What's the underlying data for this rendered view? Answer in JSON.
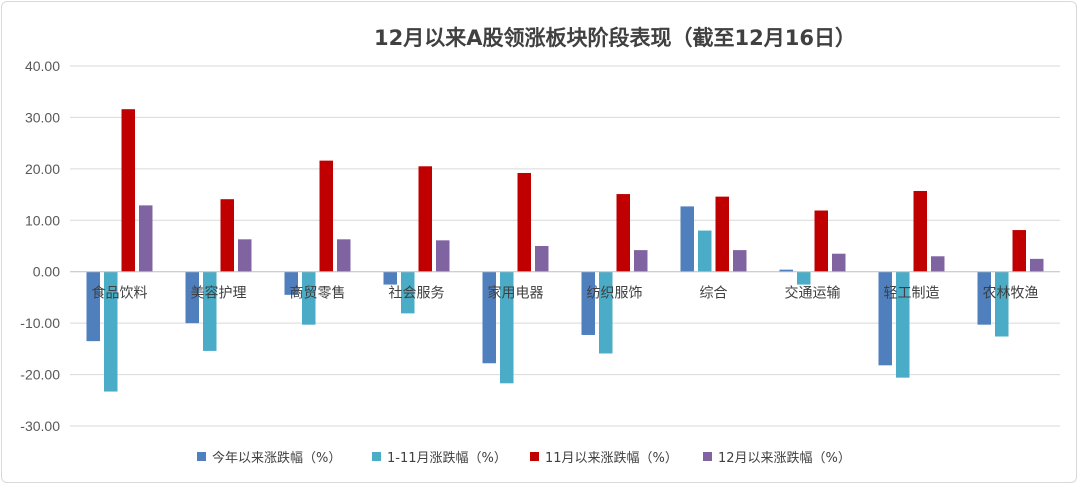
{
  "chart_data": {
    "type": "bar",
    "title": "12月以来A股领涨板块阶段表现（截至12月16日）",
    "categories": [
      "食品饮料",
      "美容护理",
      "商贸零售",
      "社会服务",
      "家用电器",
      "纺织服饰",
      "综合",
      "交通运输",
      "轻工制造",
      "农林牧渔"
    ],
    "series": [
      {
        "name": "今年以来涨跌幅（%）",
        "color": "#4f7fbd",
        "values": [
          -13.5,
          -10.0,
          -4.5,
          -2.5,
          -17.8,
          -12.3,
          12.7,
          0.4,
          -18.2,
          -10.3
        ]
      },
      {
        "name": "1-11月涨跌幅（%）",
        "color": "#4aacc6",
        "values": [
          -23.3,
          -15.4,
          -10.3,
          -8.1,
          -21.7,
          -15.9,
          8.0,
          -2.5,
          -20.6,
          -12.6
        ]
      },
      {
        "name": "11月以来涨跌幅（%）",
        "color": "#c00000",
        "values": [
          31.6,
          14.1,
          21.6,
          20.5,
          19.2,
          15.1,
          14.6,
          11.9,
          15.7,
          8.1
        ]
      },
      {
        "name": "12月以来涨跌幅（%）",
        "color": "#8064a2",
        "values": [
          12.9,
          6.3,
          6.3,
          6.1,
          5.0,
          4.2,
          4.2,
          3.5,
          3.0,
          2.5
        ]
      }
    ],
    "ylim": [
      -30,
      40
    ],
    "yticks": [
      "40.00",
      "30.00",
      "20.00",
      "10.00",
      "0.00",
      "-10.00",
      "-20.00",
      "-30.00"
    ],
    "grid": true,
    "legend": "bottom"
  }
}
